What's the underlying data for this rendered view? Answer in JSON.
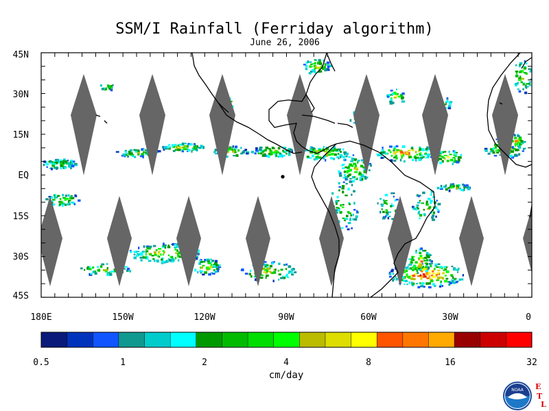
{
  "title": "SSM/I Rainfall (Ferriday algorithm)",
  "date": "June 26, 2006",
  "lat_labels": [
    "45N",
    "30N",
    "15N",
    "EQ",
    "15S",
    "30S",
    "45S"
  ],
  "lon_labels": [
    "180E",
    "150W",
    "120W",
    "90W",
    "60W",
    "30W",
    "0"
  ],
  "colorbar": {
    "tick_labels": [
      "0.5",
      "1",
      "2",
      "4",
      "8",
      "16",
      "32"
    ],
    "units": "cm/day",
    "colors": [
      "#0a1a7a",
      "#0033bb",
      "#1155ff",
      "#10998f",
      "#00cccc",
      "#00ffff",
      "#009900",
      "#00bb00",
      "#00dd00",
      "#00ff00",
      "#bbbb00",
      "#dddd00",
      "#ffff00",
      "#ff5500",
      "#ff7700",
      "#ffaa00",
      "#990000",
      "#cc0000",
      "#ff0000"
    ]
  },
  "map": {
    "lon_range": [
      -180,
      0
    ],
    "lat_range": [
      -45,
      45
    ],
    "swath_gap_color": "#666666",
    "coastline_color": "#000000"
  },
  "logo": {
    "icon": "noaa-logo-icon",
    "text": "NOAA",
    "letters": [
      "E",
      "T",
      "L"
    ]
  }
}
